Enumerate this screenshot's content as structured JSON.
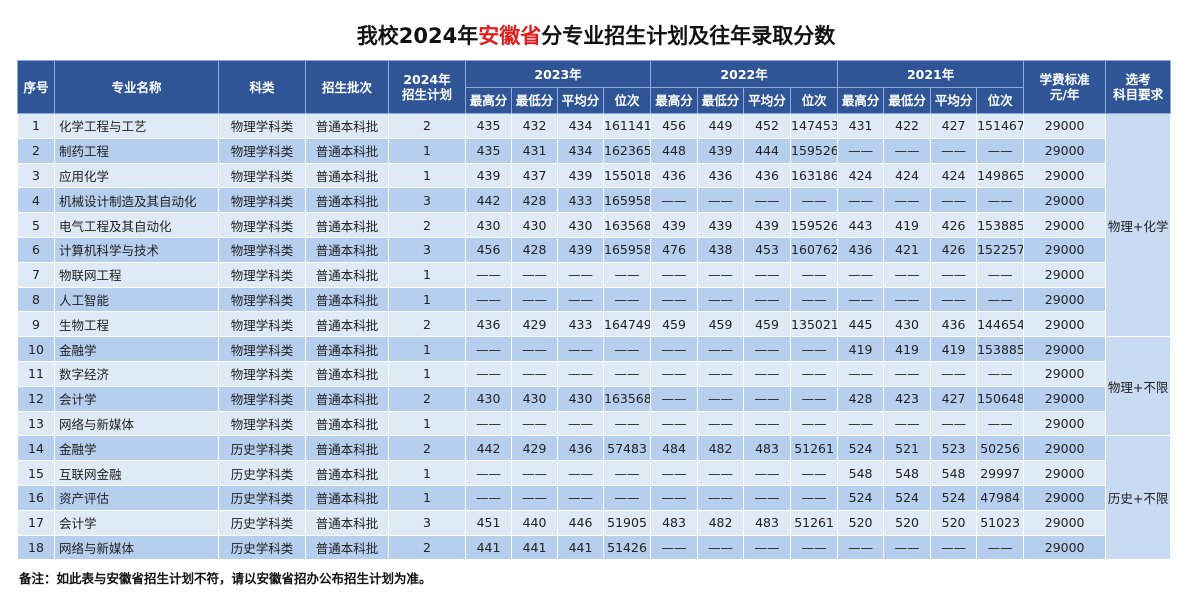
{
  "title": {
    "prefix": "我校2024年",
    "highlight": "安徽省",
    "suffix": "分专业招生计划及往年录取分数"
  },
  "table": {
    "headers": [
      {
        "lines": [
          "序号"
        ]
      },
      {
        "lines": [
          "专业名称"
        ]
      },
      {
        "lines": [
          "科类"
        ]
      },
      {
        "lines": [
          "招生批次"
        ]
      },
      {
        "lines": [
          "2024年",
          "招生计划"
        ]
      }
    ],
    "year_groups": [
      {
        "year": "2023年",
        "columns": [
          "最高分",
          "最低分",
          "平均分",
          "位次"
        ]
      },
      {
        "year": "2022年",
        "columns": [
          "最高分",
          "最低分",
          "平均分",
          "位次"
        ]
      },
      {
        "year": "2021年",
        "columns": [
          "最高分",
          "最低分",
          "平均分",
          "位次"
        ]
      }
    ],
    "tail_headers": [
      {
        "lines": [
          "学费标准",
          "元/年"
        ]
      },
      {
        "lines": [
          "选考",
          "科目要求"
        ]
      }
    ],
    "rows": [
      [
        1,
        "化学工程与工艺",
        "物理学科类",
        "普通本科批",
        2,
        435,
        432,
        434,
        161141,
        456,
        449,
        452,
        147453,
        431,
        422,
        427,
        151467,
        29000
      ],
      [
        2,
        "制药工程",
        "物理学科类",
        "普通本科批",
        1,
        435,
        431,
        434,
        162365,
        448,
        439,
        444,
        159526,
        "——",
        "——",
        "——",
        "——",
        29000
      ],
      [
        3,
        "应用化学",
        "物理学科类",
        "普通本科批",
        1,
        439,
        437,
        439,
        155018,
        436,
        436,
        436,
        163186,
        424,
        424,
        424,
        149865,
        29000
      ],
      [
        4,
        "机械设计制造及其自动化",
        "物理学科类",
        "普通本科批",
        3,
        442,
        428,
        433,
        165958,
        "——",
        "——",
        "——",
        "——",
        "——",
        "——",
        "——",
        "——",
        29000
      ],
      [
        5,
        "电气工程及其自动化",
        "物理学科类",
        "普通本科批",
        2,
        430,
        430,
        430,
        163568,
        439,
        439,
        439,
        159526,
        443,
        419,
        426,
        153885,
        29000
      ],
      [
        6,
        "计算机科学与技术",
        "物理学科类",
        "普通本科批",
        3,
        456,
        428,
        439,
        165958,
        476,
        438,
        453,
        160762,
        436,
        421,
        426,
        152257,
        29000
      ],
      [
        7,
        "物联网工程",
        "物理学科类",
        "普通本科批",
        1,
        "——",
        "——",
        "——",
        "——",
        "——",
        "——",
        "——",
        "——",
        "——",
        "——",
        "——",
        "——",
        29000
      ],
      [
        8,
        "人工智能",
        "物理学科类",
        "普通本科批",
        1,
        "——",
        "——",
        "——",
        "——",
        "——",
        "——",
        "——",
        "——",
        "——",
        "——",
        "——",
        "——",
        29000
      ],
      [
        9,
        "生物工程",
        "物理学科类",
        "普通本科批",
        2,
        436,
        429,
        433,
        164749,
        459,
        459,
        459,
        135021,
        445,
        430,
        436,
        144654,
        29000
      ],
      [
        10,
        "金融学",
        "物理学科类",
        "普通本科批",
        1,
        "——",
        "——",
        "——",
        "——",
        "——",
        "——",
        "——",
        "——",
        419,
        419,
        419,
        153885,
        29000
      ],
      [
        11,
        "数字经济",
        "物理学科类",
        "普通本科批",
        1,
        "——",
        "——",
        "——",
        "——",
        "——",
        "——",
        "——",
        "——",
        "——",
        "——",
        "——",
        "——",
        29000
      ],
      [
        12,
        "会计学",
        "物理学科类",
        "普通本科批",
        2,
        430,
        430,
        430,
        163568,
        "——",
        "——",
        "——",
        "——",
        428,
        423,
        427,
        150648,
        29000
      ],
      [
        13,
        "网络与新媒体",
        "物理学科类",
        "普通本科批",
        1,
        "——",
        "——",
        "——",
        "——",
        "——",
        "——",
        "——",
        "——",
        "——",
        "——",
        "——",
        "——",
        29000
      ],
      [
        14,
        "金融学",
        "历史学科类",
        "普通本科批",
        2,
        442,
        429,
        436,
        57483,
        484,
        482,
        483,
        51261,
        524,
        521,
        523,
        50256,
        29000
      ],
      [
        15,
        "互联网金融",
        "历史学科类",
        "普通本科批",
        1,
        "——",
        "——",
        "——",
        "——",
        "——",
        "——",
        "——",
        "——",
        548,
        548,
        548,
        29997,
        29000
      ],
      [
        16,
        "资产评估",
        "历史学科类",
        "普通本科批",
        1,
        "——",
        "——",
        "——",
        "——",
        "——",
        "——",
        "——",
        "——",
        524,
        524,
        524,
        47984,
        29000
      ],
      [
        17,
        "会计学",
        "历史学科类",
        "普通本科批",
        3,
        451,
        440,
        446,
        51905,
        483,
        482,
        483,
        51261,
        520,
        520,
        520,
        51023,
        29000
      ],
      [
        18,
        "网络与新媒体",
        "历史学科类",
        "普通本科批",
        2,
        441,
        441,
        441,
        51426,
        "——",
        "——",
        "——",
        "——",
        "——",
        "——",
        "——",
        "——",
        29000
      ]
    ],
    "requirements": [
      "物理+化学",
      "物理+不限",
      "历史+不限"
    ]
  },
  "note": "备注：如此表与安徽省招生计划不符，请以安徽省招办公布招生计划为准。"
}
